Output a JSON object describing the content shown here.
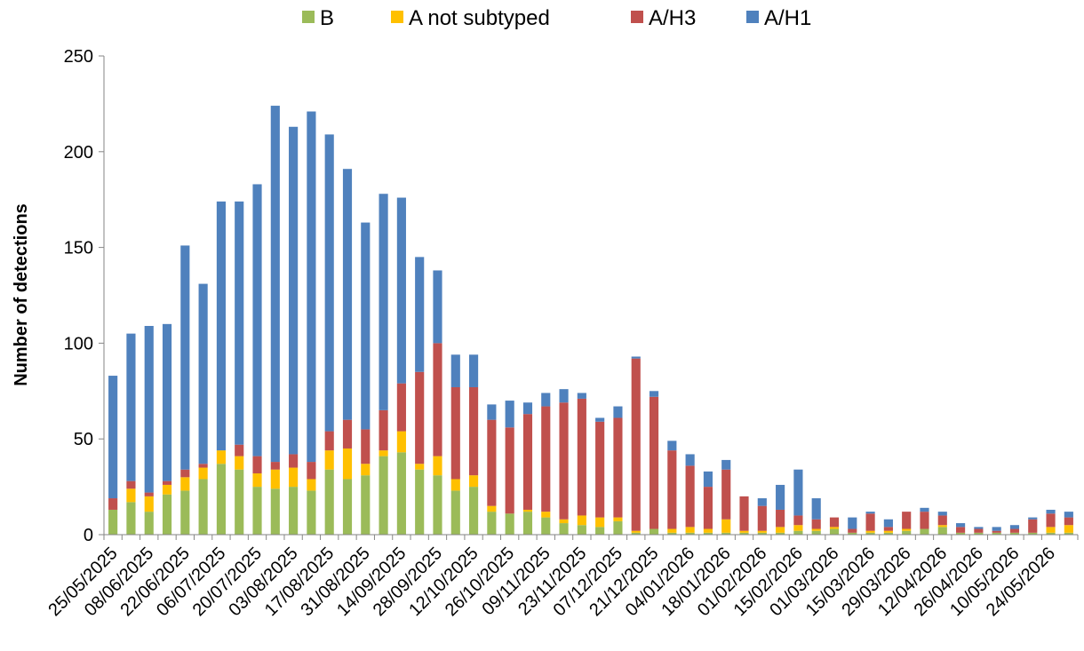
{
  "chart_data": {
    "type": "bar",
    "stacked": true,
    "title": "",
    "xlabel": "",
    "ylabel": "Number of detections",
    "ylim": [
      0,
      250
    ],
    "yticks": [
      0,
      50,
      100,
      150,
      200,
      250
    ],
    "grid": false,
    "legend_position": "top",
    "categories": [
      "25/05/2025",
      "01/06/2025",
      "08/06/2025",
      "15/06/2025",
      "22/06/2025",
      "29/06/2025",
      "06/07/2025",
      "13/07/2025",
      "20/07/2025",
      "27/07/2025",
      "03/08/2025",
      "10/08/2025",
      "17/08/2025",
      "24/08/2025",
      "31/08/2025",
      "07/09/2025",
      "14/09/2025",
      "21/09/2025",
      "28/09/2025",
      "05/10/2025",
      "12/10/2025",
      "19/10/2025",
      "26/10/2025",
      "02/11/2025",
      "09/11/2025",
      "16/11/2025",
      "23/11/2025",
      "30/11/2025",
      "07/12/2025",
      "14/12/2025",
      "21/12/2025",
      "28/12/2025",
      "04/01/2026",
      "11/01/2026",
      "18/01/2026",
      "25/01/2026",
      "01/02/2026",
      "08/02/2026",
      "15/02/2026",
      "22/02/2026",
      "01/03/2026",
      "08/03/2026",
      "15/03/2026",
      "22/03/2026",
      "29/03/2026",
      "05/04/2026",
      "12/04/2026",
      "19/04/2026",
      "26/04/2026",
      "03/05/2026",
      "10/05/2026",
      "17/05/2026",
      "24/05/2026",
      "31/05/2026"
    ],
    "tick_labels": [
      "25/05/2025",
      "08/06/2025",
      "22/06/2025",
      "06/07/2025",
      "20/07/2025",
      "03/08/2025",
      "17/08/2025",
      "31/08/2025",
      "14/09/2025",
      "28/09/2025",
      "12/10/2025",
      "26/10/2025",
      "09/11/2025",
      "23/11/2025",
      "07/12/2025",
      "21/12/2025",
      "04/01/2026",
      "18/01/2026",
      "01/02/2026",
      "15/02/2026",
      "01/03/2026",
      "15/03/2026",
      "29/03/2026",
      "12/04/2026",
      "26/04/2026",
      "10/05/2026",
      "24/05/2026"
    ],
    "series": [
      {
        "name": "B",
        "color": "#9BBB59",
        "values": [
          13,
          17,
          12,
          21,
          23,
          29,
          37,
          34,
          25,
          24,
          25,
          23,
          34,
          29,
          31,
          41,
          43,
          34,
          31,
          23,
          25,
          12,
          11,
          12,
          9,
          6,
          5,
          4,
          7,
          1,
          3,
          1,
          1,
          1,
          1,
          1,
          1,
          1,
          2,
          2,
          3,
          1,
          1,
          1,
          2,
          3,
          4,
          1,
          1,
          1,
          1,
          1,
          1,
          1
        ]
      },
      {
        "name": "A not subtyped",
        "color": "#FFC000",
        "values": [
          0,
          7,
          8,
          5,
          7,
          6,
          7,
          7,
          7,
          10,
          10,
          6,
          10,
          16,
          6,
          3,
          11,
          3,
          10,
          6,
          6,
          3,
          0,
          1,
          3,
          2,
          5,
          5,
          2,
          1,
          0,
          2,
          3,
          2,
          7,
          1,
          1,
          3,
          3,
          1,
          1,
          0,
          1,
          1,
          1,
          0,
          1,
          0,
          0,
          0,
          0,
          0,
          3,
          4
        ]
      },
      {
        "name": "A/H3",
        "color": "#C0504D",
        "values": [
          6,
          4,
          2,
          2,
          4,
          2,
          0,
          6,
          9,
          4,
          7,
          9,
          10,
          15,
          18,
          21,
          25,
          48,
          59,
          48,
          46,
          45,
          45,
          50,
          55,
          61,
          61,
          50,
          52,
          90,
          69,
          41,
          32,
          22,
          26,
          18,
          13,
          9,
          5,
          5,
          5,
          2,
          9,
          2,
          9,
          9,
          5,
          3,
          2,
          1,
          2,
          7,
          7,
          4
        ]
      },
      {
        "name": "A/H1",
        "color": "#4F81BD",
        "values": [
          64,
          77,
          87,
          82,
          117,
          94,
          130,
          127,
          142,
          186,
          171,
          183,
          155,
          131,
          108,
          113,
          97,
          60,
          38,
          17,
          17,
          8,
          14,
          6,
          7,
          7,
          3,
          2,
          6,
          1,
          3,
          5,
          6,
          8,
          5,
          0,
          4,
          13,
          24,
          11,
          0,
          6,
          1,
          4,
          0,
          2,
          2,
          2,
          1,
          2,
          2,
          1,
          2,
          3
        ]
      }
    ]
  },
  "legend": [
    {
      "label": "B",
      "color": "#9BBB59"
    },
    {
      "label": "A not subtyped",
      "color": "#FFC000"
    },
    {
      "label": "A/H3",
      "color": "#C0504D"
    },
    {
      "label": "A/H1",
      "color": "#4F81BD"
    }
  ]
}
